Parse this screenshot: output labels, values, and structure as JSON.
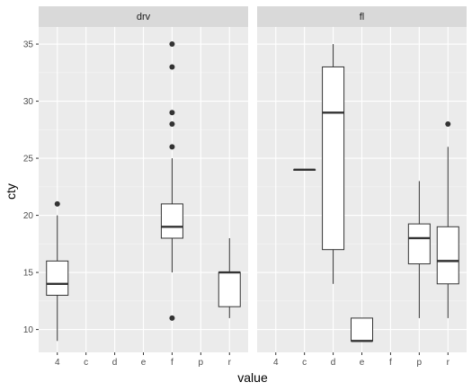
{
  "chart_data": {
    "type": "boxplot",
    "xlabel": "value",
    "ylabel": "cty",
    "ylim": [
      8,
      36.5
    ],
    "y_ticks": [
      10,
      15,
      20,
      25,
      30,
      35
    ],
    "categories": [
      "4",
      "c",
      "d",
      "e",
      "f",
      "p",
      "r"
    ],
    "grid": true,
    "panels": [
      {
        "facet": "drv",
        "boxes": [
          {
            "category": "4",
            "min": 9,
            "q1": 13,
            "median": 14,
            "q3": 16,
            "max": 20,
            "outliers": [
              21
            ]
          },
          {
            "category": "f",
            "min": 15,
            "q1": 18,
            "median": 19,
            "q3": 21,
            "max": 25,
            "outliers": [
              35,
              33,
              29,
              28,
              26,
              11
            ]
          },
          {
            "category": "r",
            "min": 11,
            "q1": 12,
            "median": 15,
            "q3": 15,
            "max": 18,
            "outliers": []
          }
        ]
      },
      {
        "facet": "fl",
        "boxes": [
          {
            "category": "c",
            "min": 24,
            "q1": 24,
            "median": 24,
            "q3": 24,
            "max": 24,
            "outliers": []
          },
          {
            "category": "d",
            "min": 14,
            "q1": 17,
            "median": 29,
            "q3": 33,
            "max": 35,
            "outliers": []
          },
          {
            "category": "e",
            "min": 9,
            "q1": 9,
            "median": 9,
            "q3": 11,
            "max": 11,
            "outliers": []
          },
          {
            "category": "p",
            "min": 11,
            "q1": 15.75,
            "median": 18,
            "q3": 19.25,
            "max": 23,
            "outliers": []
          },
          {
            "category": "r",
            "min": 11,
            "q1": 14,
            "median": 16,
            "q3": 19,
            "max": 26,
            "outliers": [
              28
            ]
          }
        ]
      }
    ]
  }
}
